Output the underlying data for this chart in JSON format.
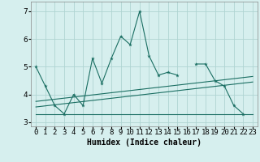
{
  "xlabel": "Humidex (Indice chaleur)",
  "x": [
    0,
    1,
    2,
    3,
    4,
    5,
    6,
    7,
    8,
    9,
    10,
    11,
    12,
    13,
    14,
    15,
    16,
    17,
    18,
    19,
    20,
    21,
    22,
    23
  ],
  "line1": [
    5.0,
    4.3,
    3.6,
    3.3,
    4.0,
    3.6,
    5.3,
    4.4,
    5.3,
    6.1,
    5.8,
    7.0,
    5.4,
    4.7,
    4.8,
    4.7,
    null,
    5.1,
    5.1,
    4.5,
    4.3,
    3.6,
    3.3,
    null
  ],
  "line2_x": [
    0,
    23
  ],
  "line2_y": [
    3.3,
    3.3
  ],
  "line3_x": [
    0,
    23
  ],
  "line3_y": [
    3.55,
    4.45
  ],
  "line4_x": [
    0,
    23
  ],
  "line4_y": [
    3.75,
    4.65
  ],
  "ylim": [
    2.85,
    7.35
  ],
  "xlim": [
    -0.5,
    23.5
  ],
  "yticks": [
    3,
    4,
    5,
    6,
    7
  ],
  "bg_color": "#d6efee",
  "grid_color": "#afd4d2",
  "line_color": "#1a6e62",
  "label_fontsize": 7,
  "tick_fontsize": 6.5
}
